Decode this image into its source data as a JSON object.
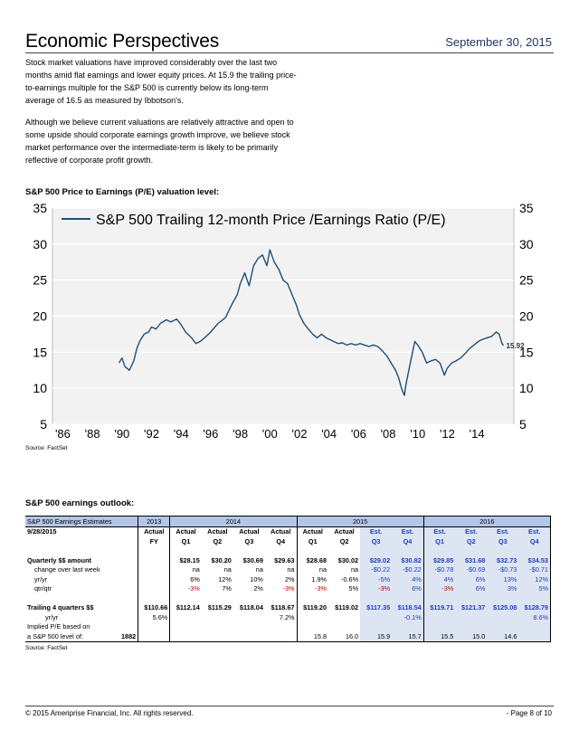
{
  "header": {
    "title": "Economic Perspectives",
    "date": "September 30, 2015"
  },
  "paragraphs": [
    "Stock market valuations have improved considerably over the last two months amid flat earnings and lower equity prices.  At 15.9 the trailing price-to-earnings multiple for the S&P 500 is currently below its long-term average of 16.5 as measured by Ibbotson's.",
    "Although we believe current valuations are relatively attractive and open to some upside should corporate earnings growth improve, we believe stock market performance over the intermediate-term is likely to be primarily reflective of corporate profit growth."
  ],
  "chart_section_title": "S&P 500 Price to Earnings (P/E) valuation level:",
  "chart_source": "Source: FactSet",
  "chart_data": {
    "type": "line",
    "series": [
      {
        "name": "S&P 500 Trailing 12-month Price /Earnings Ratio (P/E)",
        "points": [
          [
            1989.8,
            13.5
          ],
          [
            1990.0,
            14.2
          ],
          [
            1990.2,
            13.0
          ],
          [
            1990.5,
            12.5
          ],
          [
            1990.8,
            13.8
          ],
          [
            1991.0,
            15.5
          ],
          [
            1991.2,
            16.5
          ],
          [
            1991.5,
            17.5
          ],
          [
            1991.8,
            17.8
          ],
          [
            1992.0,
            18.5
          ],
          [
            1992.3,
            18.2
          ],
          [
            1992.6,
            19.0
          ],
          [
            1993.0,
            19.5
          ],
          [
            1993.3,
            19.2
          ],
          [
            1993.7,
            19.6
          ],
          [
            1994.0,
            18.8
          ],
          [
            1994.3,
            17.8
          ],
          [
            1994.7,
            17.0
          ],
          [
            1995.0,
            16.2
          ],
          [
            1995.3,
            16.5
          ],
          [
            1995.7,
            17.2
          ],
          [
            1996.0,
            17.8
          ],
          [
            1996.5,
            19.0
          ],
          [
            1997.0,
            19.8
          ],
          [
            1997.4,
            21.5
          ],
          [
            1997.8,
            23.0
          ],
          [
            1998.0,
            24.5
          ],
          [
            1998.3,
            26.0
          ],
          [
            1998.6,
            24.2
          ],
          [
            1998.9,
            27.0
          ],
          [
            1999.2,
            28.0
          ],
          [
            1999.5,
            28.5
          ],
          [
            1999.8,
            27.0
          ],
          [
            2000.0,
            29.2
          ],
          [
            2000.3,
            27.5
          ],
          [
            2000.6,
            26.5
          ],
          [
            2000.9,
            25.0
          ],
          [
            2001.2,
            24.5
          ],
          [
            2001.5,
            23.0
          ],
          [
            2001.8,
            21.5
          ],
          [
            2002.0,
            20.2
          ],
          [
            2002.3,
            19.0
          ],
          [
            2002.6,
            18.2
          ],
          [
            2002.9,
            17.5
          ],
          [
            2003.2,
            17.0
          ],
          [
            2003.5,
            17.5
          ],
          [
            2003.8,
            17.0
          ],
          [
            2004.0,
            16.8
          ],
          [
            2004.3,
            16.5
          ],
          [
            2004.6,
            16.2
          ],
          [
            2004.9,
            16.3
          ],
          [
            2005.2,
            16.0
          ],
          [
            2005.5,
            16.2
          ],
          [
            2005.8,
            16.0
          ],
          [
            2006.1,
            16.2
          ],
          [
            2006.4,
            16.0
          ],
          [
            2006.7,
            15.8
          ],
          [
            2007.0,
            16.0
          ],
          [
            2007.3,
            15.8
          ],
          [
            2007.6,
            15.2
          ],
          [
            2007.9,
            14.5
          ],
          [
            2008.2,
            13.5
          ],
          [
            2008.5,
            12.5
          ],
          [
            2008.7,
            11.5
          ],
          [
            2008.9,
            10.0
          ],
          [
            2009.1,
            9.0
          ],
          [
            2009.2,
            10.5
          ],
          [
            2009.4,
            12.5
          ],
          [
            2009.6,
            14.5
          ],
          [
            2009.8,
            16.5
          ],
          [
            2010.0,
            16.0
          ],
          [
            2010.3,
            15.0
          ],
          [
            2010.6,
            13.5
          ],
          [
            2010.9,
            13.8
          ],
          [
            2011.2,
            14.0
          ],
          [
            2011.5,
            13.5
          ],
          [
            2011.8,
            11.8
          ],
          [
            2012.0,
            12.8
          ],
          [
            2012.3,
            13.5
          ],
          [
            2012.6,
            13.8
          ],
          [
            2012.9,
            14.2
          ],
          [
            2013.2,
            14.8
          ],
          [
            2013.5,
            15.5
          ],
          [
            2013.8,
            16.0
          ],
          [
            2014.1,
            16.5
          ],
          [
            2014.4,
            16.8
          ],
          [
            2014.7,
            17.0
          ],
          [
            2015.0,
            17.2
          ],
          [
            2015.3,
            17.8
          ],
          [
            2015.5,
            17.5
          ],
          [
            2015.7,
            16.2
          ],
          [
            2015.8,
            15.92
          ]
        ]
      }
    ],
    "end_label": "15.92",
    "x_ticks": [
      "'86",
      "'88",
      "'90",
      "'92",
      "'94",
      "'96",
      "'98",
      "'00",
      "'02",
      "'04",
      "'06",
      "'08",
      "'10",
      "'12",
      "'14"
    ],
    "y_ticks": [
      5,
      10,
      15,
      20,
      25,
      30,
      35
    ],
    "xlim": [
      1985.3,
      2016.5
    ],
    "ylim": [
      5,
      35
    ],
    "grid": true,
    "legend_position": "top-left",
    "line_color": "#1f4e79"
  },
  "table_section_title": "S&P 500 earnings outlook:",
  "table": {
    "title": "S&P 500 Earnings Estimates",
    "groups": [
      "2013",
      "2014",
      "2015",
      "2016"
    ],
    "date_label": "9/28/2015",
    "row1": [
      "Actual",
      "Actual",
      "Actual",
      "Actual",
      "Actual",
      "Actual",
      "Actual",
      "Est.",
      "Est.",
      "Est.",
      "Est.",
      "Est.",
      "Est."
    ],
    "row2": [
      "FY",
      "Q1",
      "Q2",
      "Q3",
      "Q4",
      "Q1",
      "Q2",
      "Q3",
      "Q4",
      "Q1",
      "Q2",
      "Q3",
      "Q4"
    ],
    "rows": [
      {
        "label": "Quarterly $$ amount",
        "values": [
          "",
          "$28.15",
          "$30.20",
          "$30.69",
          "$29.63",
          "$28.68",
          "$30.02",
          "$29.02",
          "$30.82",
          "$29.85",
          "$31.68",
          "$32.73",
          "$34.53"
        ]
      },
      {
        "label": "change over last week",
        "values": [
          "",
          "na",
          "na",
          "na",
          "na",
          "na",
          "na",
          "-$0.22",
          "-$0.22",
          "-$0.78",
          "-$0.69",
          "-$0.73",
          "-$0.71"
        ]
      },
      {
        "label": "yr/yr",
        "values": [
          "",
          "6%",
          "12%",
          "10%",
          "2%",
          "1.9%",
          "-0.6%",
          "-5%",
          "4%",
          "4%",
          "6%",
          "13%",
          "12%"
        ]
      },
      {
        "label": "qtr/qtr",
        "values": [
          "",
          "-3%",
          "7%",
          "2%",
          "-3%",
          "-3%",
          "5%",
          "-3%",
          "6%",
          "-3%",
          "6%",
          "3%",
          "5%"
        ]
      },
      {
        "label": "Trailing 4 quarters $$",
        "values": [
          "$110.66",
          "$112.14",
          "$115.29",
          "$118.04",
          "$118.67",
          "$119.20",
          "$119.02",
          "$117.35",
          "$118.54",
          "$119.71",
          "$121.37",
          "$125.08",
          "$128.79"
        ]
      },
      {
        "label": "yr/yr",
        "values": [
          "5.6%",
          "",
          "",
          "",
          "7.2%",
          "",
          "",
          "",
          "-0.1%",
          "",
          "",
          "",
          "8.6%"
        ]
      },
      {
        "label": "Implied P/E based on",
        "values": [
          "",
          "",
          "",
          "",
          "",
          "",
          "",
          "",
          "",
          "",
          "",
          "",
          ""
        ]
      },
      {
        "label": "a S&P 500 level of:",
        "level": "1882",
        "values": [
          "",
          "",
          "",
          "",
          "",
          "15.8",
          "16.0",
          "15.9",
          "15.7",
          "15.5",
          "15.0",
          "14.6"
        ]
      }
    ],
    "source": "Source: FactSet"
  },
  "footer": {
    "copyright": "© 2015 Ameriprise Financial, Inc. All rights reserved.",
    "page": "- Page 8 of 10"
  }
}
